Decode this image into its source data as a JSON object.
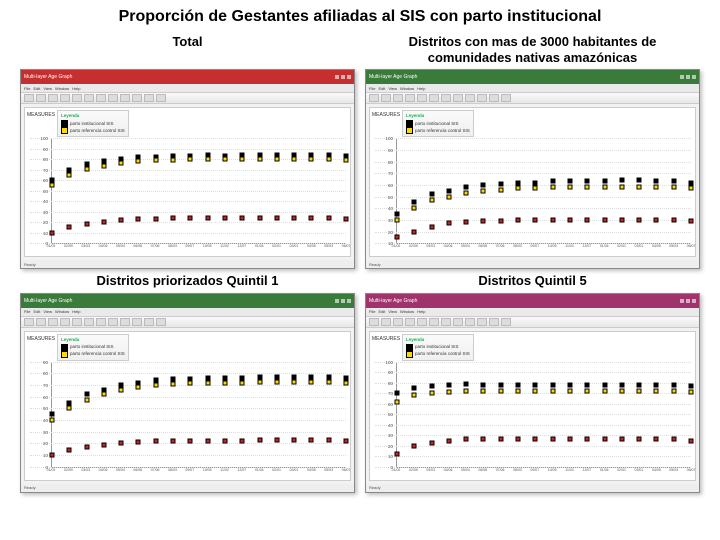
{
  "main_title": "Proporción de Gestantes afiliadas al SIS con parto institucional",
  "panels": {
    "total": {
      "title": "Total",
      "titlebar_color": "#c62f2f",
      "ylabel": "MEASURES",
      "legend_header": "Leyenda",
      "legend_items": [
        {
          "label": "parto institucional SIS",
          "color": "#000000"
        },
        {
          "label": "parto referencia control SIS",
          "color": "#ffd700"
        }
      ],
      "yticks": [
        0,
        10,
        20,
        30,
        40,
        50,
        60,
        70,
        80,
        90,
        100
      ],
      "ylim": [
        0,
        100
      ],
      "xlabels": [
        "01/02",
        "02/09",
        "03/03",
        "04/06",
        "05/04",
        "06/08",
        "07/06",
        "08/03",
        "09/07",
        "10/05",
        "11/02",
        "12/07",
        "01/04",
        "02/01",
        "03/01",
        "04/05",
        "05/03",
        "06/07"
      ],
      "series": [
        {
          "color": "#000000",
          "fill": "#000000",
          "values": [
            60,
            70,
            75,
            78,
            80,
            82,
            82,
            83,
            83,
            84,
            83,
            84,
            84,
            84,
            84,
            84,
            84,
            83
          ]
        },
        {
          "color": "#000000",
          "fill": "#ffd700",
          "values": [
            55,
            65,
            71,
            74,
            76,
            78,
            79,
            79,
            80,
            80,
            80,
            80,
            80,
            80,
            80,
            80,
            80,
            79
          ]
        },
        {
          "color": "#000000",
          "fill": "#cc2222",
          "values": [
            10,
            15,
            18,
            20,
            22,
            23,
            23,
            24,
            24,
            24,
            24,
            24,
            24,
            24,
            24,
            24,
            24,
            23
          ]
        }
      ],
      "grid_color": "#dddddd",
      "background": "#ffffff"
    },
    "amaz": {
      "title": "Distritos con mas de 3000 habitantes de comunidades nativas amazónicas",
      "titlebar_color": "#3a7a3a",
      "ylabel": "MEASURES",
      "legend_header": "Leyenda",
      "legend_items": [
        {
          "label": "parto institucional SIS",
          "color": "#000000"
        },
        {
          "label": "parto referencia control SIS",
          "color": "#ffd700"
        }
      ],
      "yticks": [
        10,
        20,
        30,
        40,
        50,
        60,
        70,
        80,
        90,
        100
      ],
      "ylim": [
        10,
        100
      ],
      "xlabels": [
        "01/02",
        "02/09",
        "03/03",
        "04/06",
        "05/04",
        "06/08",
        "07/06",
        "08/03",
        "09/07",
        "10/05",
        "11/02",
        "12/07",
        "01/04",
        "02/01",
        "03/01",
        "04/05",
        "05/03",
        "06/07"
      ],
      "series": [
        {
          "color": "#000000",
          "fill": "#000000",
          "values": [
            35,
            45,
            52,
            55,
            58,
            60,
            61,
            62,
            62,
            63,
            63,
            63,
            63,
            64,
            64,
            63,
            63,
            62
          ]
        },
        {
          "color": "#000000",
          "fill": "#ffd700",
          "values": [
            30,
            40,
            47,
            50,
            53,
            55,
            56,
            57,
            57,
            58,
            58,
            58,
            58,
            58,
            58,
            58,
            58,
            57
          ]
        },
        {
          "color": "#000000",
          "fill": "#cc2222",
          "values": [
            15,
            20,
            24,
            27,
            28,
            29,
            29,
            30,
            30,
            30,
            30,
            30,
            30,
            30,
            30,
            30,
            30,
            29
          ]
        }
      ],
      "grid_color": "#dddddd",
      "background": "#ffffff"
    },
    "q1": {
      "title": "Distritos priorizados Quintil 1",
      "titlebar_color": "#3a7a3a",
      "ylabel": "MEASURES",
      "legend_header": "Leyenda",
      "legend_items": [
        {
          "label": "parto institucional SIS",
          "color": "#000000"
        },
        {
          "label": "parto referencia control SIS",
          "color": "#ffd700"
        }
      ],
      "yticks": [
        0,
        10,
        20,
        30,
        40,
        50,
        60,
        70,
        80,
        90
      ],
      "ylim": [
        0,
        90
      ],
      "xlabels": [
        "01/02",
        "02/09",
        "03/03",
        "04/06",
        "05/04",
        "06/08",
        "07/06",
        "08/03",
        "09/07",
        "10/05",
        "11/02",
        "12/07",
        "01/04",
        "02/01",
        "03/01",
        "04/05",
        "05/03",
        "06/07"
      ],
      "series": [
        {
          "color": "#000000",
          "fill": "#000000",
          "values": [
            45,
            55,
            62,
            66,
            70,
            72,
            74,
            75,
            75,
            76,
            76,
            76,
            77,
            77,
            77,
            77,
            77,
            76
          ]
        },
        {
          "color": "#000000",
          "fill": "#ffd700",
          "values": [
            40,
            50,
            57,
            62,
            66,
            68,
            70,
            71,
            72,
            72,
            72,
            72,
            73,
            73,
            73,
            73,
            73,
            72
          ]
        },
        {
          "color": "#000000",
          "fill": "#cc2222",
          "values": [
            10,
            14,
            17,
            19,
            20,
            21,
            22,
            22,
            22,
            22,
            22,
            22,
            23,
            23,
            23,
            23,
            23,
            22
          ]
        }
      ],
      "grid_color": "#dddddd",
      "background": "#ffffff"
    },
    "q5": {
      "title": "Distritos Quintil 5",
      "titlebar_color": "#a0336b",
      "ylabel": "MEASURES",
      "legend_header": "Leyenda",
      "legend_items": [
        {
          "label": "parto institucional SIS",
          "color": "#000000"
        },
        {
          "label": "parto referencia control SIS",
          "color": "#ffd700"
        }
      ],
      "yticks": [
        0,
        10,
        20,
        30,
        40,
        50,
        60,
        70,
        80,
        90,
        100
      ],
      "ylim": [
        0,
        100
      ],
      "xlabels": [
        "01/02",
        "02/09",
        "03/03",
        "04/06",
        "05/04",
        "06/08",
        "07/06",
        "08/03",
        "09/07",
        "10/05",
        "11/02",
        "12/07",
        "01/04",
        "02/01",
        "03/01",
        "04/05",
        "05/03",
        "06/07"
      ],
      "series": [
        {
          "color": "#000000",
          "fill": "#000000",
          "values": [
            70,
            75,
            77,
            78,
            79,
            78,
            78,
            78,
            78,
            78,
            78,
            78,
            78,
            78,
            78,
            78,
            78,
            77
          ]
        },
        {
          "color": "#000000",
          "fill": "#ffd700",
          "values": [
            62,
            68,
            70,
            71,
            72,
            72,
            72,
            72,
            72,
            72,
            72,
            72,
            72,
            72,
            72,
            72,
            72,
            71
          ]
        },
        {
          "color": "#000000",
          "fill": "#cc2222",
          "values": [
            12,
            20,
            23,
            25,
            26,
            26,
            26,
            26,
            26,
            26,
            26,
            26,
            26,
            26,
            26,
            26,
            26,
            25
          ]
        }
      ],
      "grid_color": "#dddddd",
      "background": "#ffffff"
    }
  },
  "toolbar_button_count": 12,
  "status_text": "Ready",
  "window_title": "Multi-layer Age Graph"
}
